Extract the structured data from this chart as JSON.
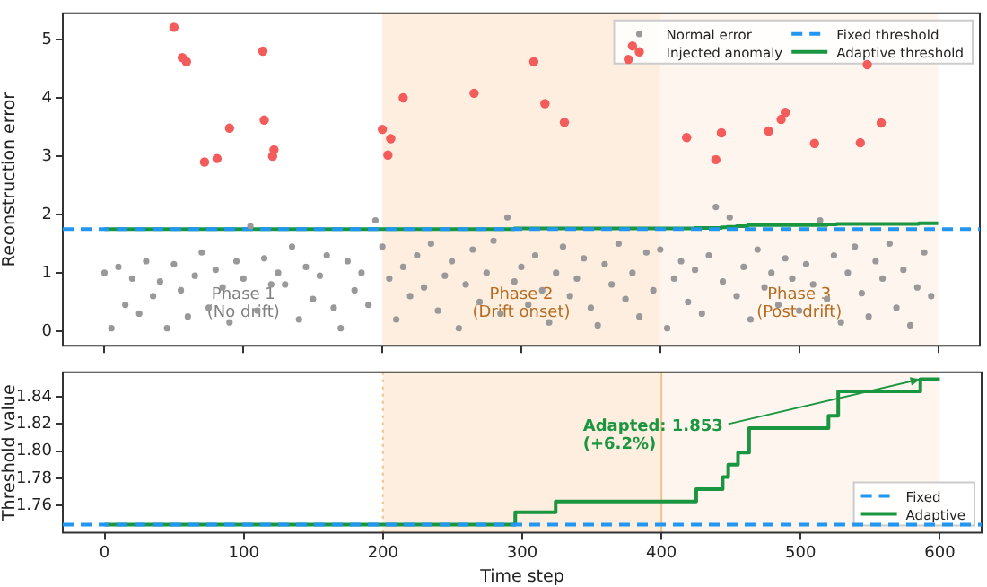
{
  "chart_data": [
    {
      "type": "scatter",
      "ylabel": "Reconstruction error",
      "xlim": [
        -30,
        630
      ],
      "ylim": [
        -0.25,
        5.45
      ],
      "xticks": [
        0,
        100,
        200,
        300,
        400,
        500,
        600
      ],
      "yticks": [
        0,
        1,
        2,
        3,
        4,
        5
      ],
      "tick_labels": "y",
      "grid": false,
      "legend": "top right",
      "annotations": [
        "Phase 1\n(No drift)"
      ],
      "bands": [
        {
          "axis": "x",
          "from": 200,
          "to": 400,
          "label": "Phase 2\n(Drift onset)",
          "color": "#fdeedf"
        },
        {
          "axis": "x",
          "from": 400,
          "to": 600,
          "label": "Phase 3\n(Post-drift)",
          "color": "#fef6ee"
        }
      ],
      "series": [
        {
          "name": "Normal error",
          "marker": "circle",
          "color": "#999999",
          "x": [
            0,
            5,
            10,
            15,
            20,
            25,
            30,
            35,
            40,
            45,
            50,
            55,
            60,
            65,
            70,
            75,
            80,
            85,
            90,
            95,
            100,
            105,
            110,
            115,
            120,
            125,
            130,
            135,
            140,
            145,
            150,
            155,
            160,
            165,
            170,
            175,
            180,
            185,
            190,
            195,
            200,
            205,
            210,
            215,
            220,
            225,
            230,
            235,
            240,
            245,
            250,
            255,
            260,
            265,
            270,
            275,
            280,
            285,
            290,
            295,
            300,
            305,
            310,
            315,
            320,
            325,
            330,
            335,
            340,
            345,
            350,
            355,
            360,
            365,
            370,
            375,
            380,
            385,
            390,
            395,
            400,
            405,
            410,
            415,
            420,
            425,
            430,
            435,
            440,
            445,
            450,
            455,
            460,
            465,
            470,
            475,
            480,
            485,
            490,
            495,
            500,
            505,
            510,
            515,
            520,
            525,
            530,
            535,
            540,
            545,
            550,
            555,
            560,
            565,
            570,
            575,
            580,
            585,
            590,
            595
          ],
          "values": [
            1.0,
            0.05,
            1.1,
            0.45,
            0.9,
            0.3,
            1.2,
            0.6,
            0.85,
            0.05,
            1.15,
            0.7,
            0.25,
            0.95,
            1.35,
            0.4,
            1.05,
            0.75,
            0.15,
            1.2,
            0.9,
            1.8,
            0.35,
            1.25,
            0.8,
            1.0,
            0.8,
            1.45,
            0.2,
            1.1,
            0.55,
            0.95,
            1.3,
            0.4,
            0.05,
            1.2,
            0.7,
            1.0,
            0.45,
            1.9,
            1.45,
            0.9,
            0.2,
            1.1,
            0.6,
            1.3,
            0.75,
            1.5,
            0.35,
            0.95,
            1.2,
            0.05,
            0.8,
            1.4,
            0.5,
            1.0,
            1.55,
            0.3,
            1.95,
            0.85,
            1.1,
            0.45,
            1.3,
            0.7,
            0.15,
            1.0,
            1.45,
            0.6,
            0.9,
            1.25,
            0.4,
            0.1,
            1.15,
            0.8,
            1.5,
            0.55,
            1.0,
            0.25,
            1.35,
            0.7,
            1.4,
            0.05,
            0.9,
            1.2,
            0.5,
            1.05,
            0.3,
            1.3,
            2.13,
            0.85,
            1.95,
            0.6,
            1.1,
            0.2,
            1.4,
            0.75,
            1.0,
            0.45,
            1.25,
            0.9,
            0.35,
            1.15,
            0.8,
            1.9,
            0.55,
            1.3,
            0.15,
            1.0,
            1.45,
            0.65,
            0.25,
            1.2,
            0.9,
            1.5,
            0.4,
            1.05,
            0.1,
            0.75,
            1.35,
            0.6
          ]
        },
        {
          "name": "Injected anomaly",
          "marker": "circle",
          "color": "#f45b5b",
          "x": [
            50,
            56,
            59,
            72,
            81,
            90,
            114,
            115,
            121,
            122,
            200,
            204,
            206,
            215,
            266,
            309,
            317,
            331,
            377,
            380,
            419,
            440,
            444,
            478,
            487,
            490,
            511,
            544,
            549,
            559
          ],
          "values": [
            5.21,
            4.69,
            4.62,
            2.9,
            2.96,
            3.48,
            4.8,
            3.62,
            3.0,
            3.11,
            3.46,
            3.02,
            3.3,
            4.0,
            4.08,
            4.62,
            3.9,
            3.58,
            4.66,
            4.89,
            3.32,
            2.94,
            3.4,
            3.43,
            3.63,
            3.75,
            3.22,
            3.23,
            4.57,
            3.57
          ]
        },
        {
          "name": "Fixed threshold",
          "type": "line",
          "marker": "none",
          "line_style": "dashed",
          "color": "#2196f3",
          "x": [
            -30,
            630
          ],
          "values": [
            1.75,
            1.75
          ]
        },
        {
          "name": "Adaptive threshold",
          "type": "step",
          "marker": "none",
          "line_style": "solid",
          "color": "#1a9641",
          "x": [
            0,
            295,
            324,
            425,
            444,
            448,
            455,
            463,
            520,
            527,
            586,
            600
          ],
          "values": [
            1.75,
            1.76,
            1.76,
            1.77,
            1.78,
            1.79,
            1.8,
            1.82,
            1.83,
            1.84,
            1.85,
            1.85
          ]
        }
      ]
    },
    {
      "type": "line",
      "xlabel": "Time step",
      "ylabel": "Threshold value",
      "xlim": [
        -30,
        630
      ],
      "ylim": [
        1.74,
        1.858
      ],
      "xticks": [
        0,
        100,
        200,
        300,
        400,
        500,
        600
      ],
      "yticks": [
        1.76,
        1.78,
        {
          "value": 1.8,
          "label": "1.80"
        },
        1.82,
        1.84
      ],
      "grid": false,
      "legend": "bottom right",
      "bands": [
        {
          "axis": "x",
          "from": 200,
          "to": 400,
          "color": "#fdeedf"
        },
        {
          "axis": "x",
          "from": 400,
          "to": 600,
          "color": "#fef6ee"
        }
      ],
      "ref_lines": [
        {
          "axis": "x",
          "value": 200,
          "color": "#f7c08a",
          "line_style": "dotted"
        },
        {
          "axis": "x",
          "value": 400,
          "color": "#f7c08a",
          "line_style": "solid"
        }
      ],
      "annotations": [
        {
          "text": "Adapted: 1.853\n(+6.2%)",
          "x": 586,
          "y": 1.853
        }
      ],
      "series": [
        {
          "name": "Fixed",
          "marker": "none",
          "line_style": "dashed",
          "color": "#2196f3",
          "x": [
            -30,
            630
          ],
          "values": [
            1.746,
            1.746
          ]
        },
        {
          "name": "Adaptive",
          "type": "step",
          "marker": "none",
          "line_style": "solid",
          "color": "#1a9641",
          "x": [
            0,
            295,
            324,
            425,
            444,
            448,
            455,
            463,
            520,
            527,
            586,
            600
          ],
          "values": [
            1.746,
            1.755,
            1.763,
            1.772,
            1.781,
            1.79,
            1.799,
            1.817,
            1.826,
            1.844,
            1.853,
            1.853
          ]
        }
      ]
    }
  ]
}
